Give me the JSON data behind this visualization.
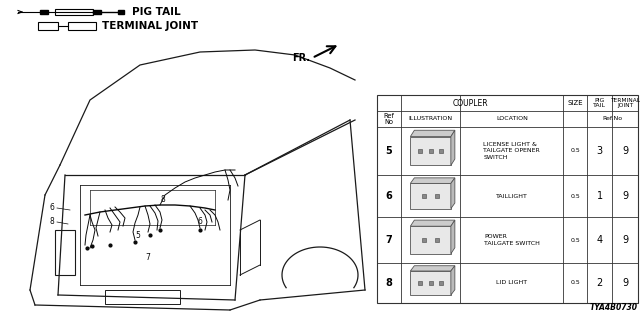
{
  "bg_color": "#ffffff",
  "text_color": "#000000",
  "line_color": "#000000",
  "table_line_color": "#333333",
  "code": "TYA4B0730",
  "pig_tail_label": "PIG TAIL",
  "terminal_joint_label": "TERMINAL JOINT",
  "fr_label": "FR.",
  "table_rows": [
    {
      "ref": 5,
      "location": "LICENSE LIGHT &\nTAILGATE OPENER\nSWITCH",
      "size": "0.5",
      "pig_tail": "3",
      "terminal": "9"
    },
    {
      "ref": 6,
      "location": "TAILLIGHT",
      "size": "0.5",
      "pig_tail": "1",
      "terminal": "9"
    },
    {
      "ref": 7,
      "location": "POWER\nTAILGATE SWITCH",
      "size": "0.5",
      "pig_tail": "4",
      "terminal": "9"
    },
    {
      "ref": 8,
      "location": "LID LIGHT",
      "size": "0.5",
      "pig_tail": "2",
      "terminal": "9"
    }
  ]
}
